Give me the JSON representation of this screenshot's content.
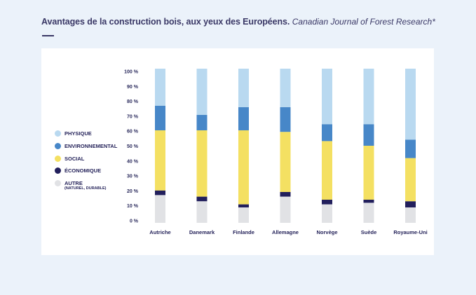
{
  "header": {
    "title": "Avantages de la construction bois, aux yeux des Européens.",
    "source": "Canadian Journal of Forest Research*"
  },
  "colors": {
    "background": "#ebf2fa",
    "panel": "#ffffff",
    "text": "#2a2a5c"
  },
  "legend": [
    {
      "key": "physique",
      "label": "PHYSIQUE",
      "color": "#b9d9f0"
    },
    {
      "key": "environnemental",
      "label": "ENVIRONNEMENTAL",
      "color": "#4787c8"
    },
    {
      "key": "social",
      "label": "SOCIAL",
      "color": "#f4e062"
    },
    {
      "key": "economique",
      "label": "ÉCONOMIQUE",
      "color": "#221f5c"
    },
    {
      "key": "autre",
      "label": "AUTRE",
      "sublabel": "(NATUREL, DURABLE)",
      "color": "#e1e2e5"
    }
  ],
  "chart_data": {
    "type": "bar",
    "stacked": true,
    "title": "Avantages de la construction bois, aux yeux des Européens.",
    "subtitle": "Canadian Journal of Forest Research*",
    "xlabel": "",
    "ylabel": "",
    "ylim": [
      0,
      100
    ],
    "yticks": [
      0,
      10,
      20,
      30,
      40,
      50,
      60,
      70,
      80,
      90,
      100
    ],
    "ytick_labels": [
      "0 %",
      "10 %",
      "20 %",
      "30 %",
      "40 %",
      "50 %",
      "60 %",
      "70 %",
      "80 %",
      "90 %",
      "100 %"
    ],
    "grid": false,
    "legend_position": "left",
    "categories": [
      "Autriche",
      "Danemark",
      "Finlande",
      "Allemagne",
      "Norvège",
      "Suède",
      "Royaume-Uni"
    ],
    "series": [
      {
        "name": "AUTRE (NATUREL, DURABLE)",
        "values": [
          18,
          14,
          10,
          17,
          12,
          13,
          10
        ]
      },
      {
        "name": "ÉCONOMIQUE",
        "values": [
          3,
          3,
          2,
          3,
          3,
          2,
          4
        ]
      },
      {
        "name": "SOCIAL",
        "values": [
          39,
          43,
          48,
          39,
          38,
          35,
          28
        ]
      },
      {
        "name": "ENVIRONNEMENTAL",
        "values": [
          16,
          10,
          15,
          16,
          11,
          14,
          12
        ]
      },
      {
        "name": "PHYSIQUE",
        "values": [
          24,
          30,
          25,
          25,
          36,
          36,
          46
        ]
      }
    ]
  }
}
